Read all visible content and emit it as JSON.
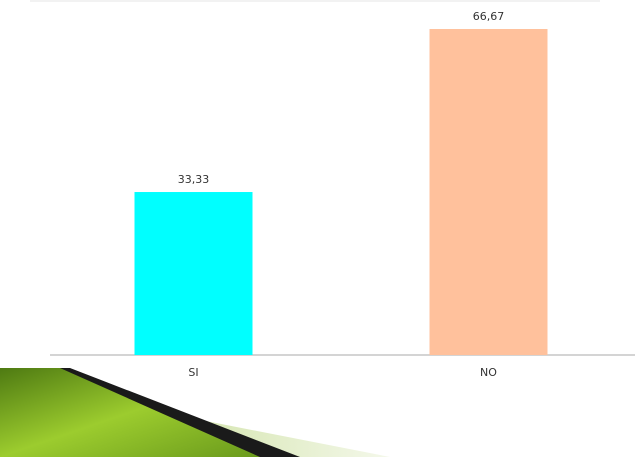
{
  "chart_data": {
    "type": "bar",
    "categories": [
      "SI",
      "NO"
    ],
    "values": [
      33.33,
      66.67
    ],
    "value_labels": [
      "33,33",
      "66,67"
    ],
    "colors": [
      "#00ffff",
      "#ffc19c"
    ]
  }
}
